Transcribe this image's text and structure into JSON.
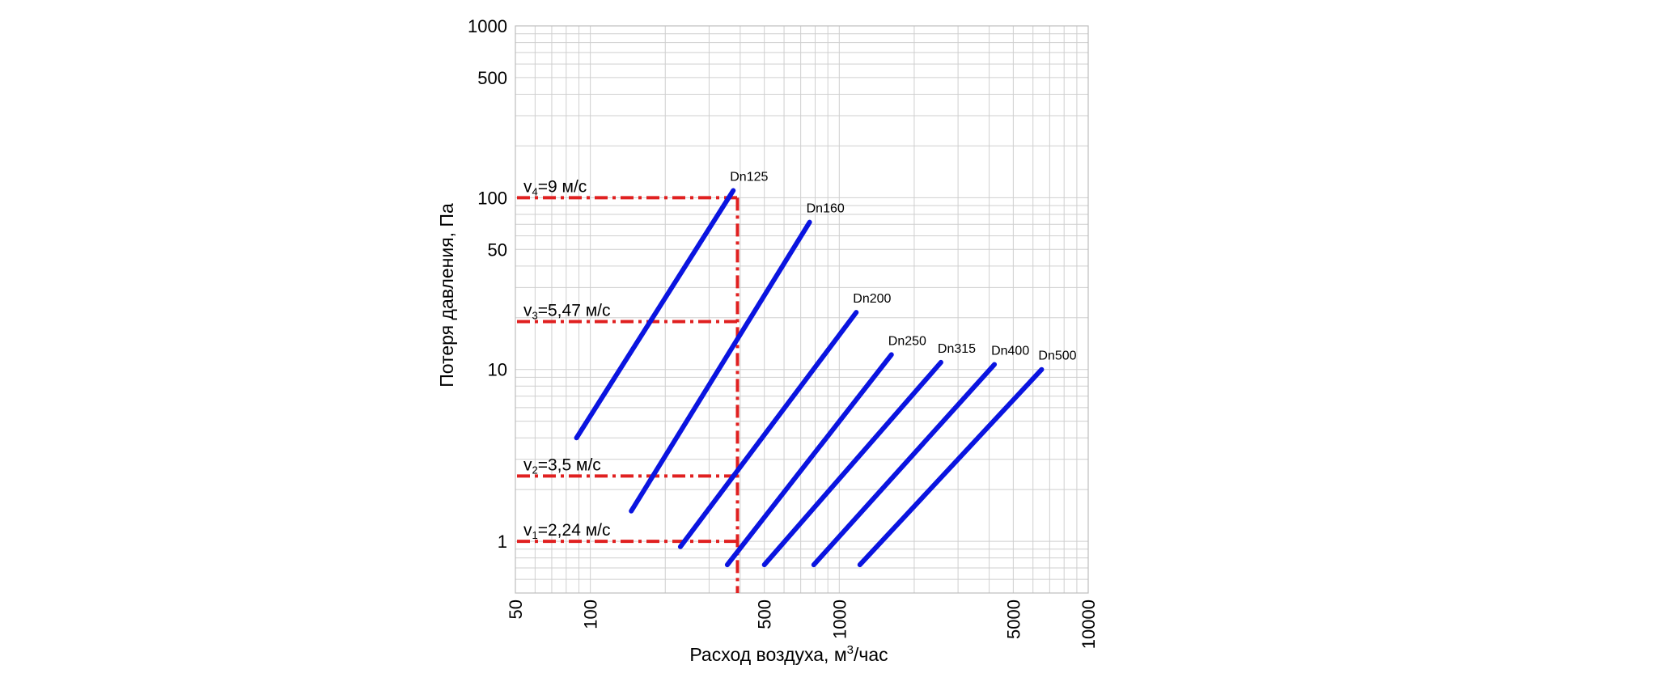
{
  "chart_data": {
    "type": "line",
    "xlabel": "Расход воздуха,  м",
    "xlabel_sup": "3",
    "xlabel_unit": "/час",
    "ylabel": "Потеря давления,  Па",
    "x_scale": "log",
    "y_scale": "log",
    "xlim": [
      50,
      10000
    ],
    "ylim": [
      0.5,
      1000
    ],
    "x_ticks": [
      {
        "value": 50,
        "label": "50"
      },
      {
        "value": 100,
        "label": "100"
      },
      {
        "value": 500,
        "label": "500"
      },
      {
        "value": 1000,
        "label": "1000"
      },
      {
        "value": 5000,
        "label": "5000"
      },
      {
        "value": 10000,
        "label": "10000"
      }
    ],
    "y_ticks": [
      {
        "value": 1,
        "label": "1"
      },
      {
        "value": 10,
        "label": "10"
      },
      {
        "value": 50,
        "label": "50"
      },
      {
        "value": 100,
        "label": "100"
      },
      {
        "value": 500,
        "label": "500"
      },
      {
        "value": 1000,
        "label": "1000"
      }
    ],
    "grid": true,
    "series": [
      {
        "name": "Dn125",
        "color": "#0a14e0",
        "points": [
          [
            88,
            4.0
          ],
          [
            375,
            110
          ]
        ]
      },
      {
        "name": "Dn160",
        "color": "#0a14e0",
        "points": [
          [
            146,
            1.5
          ],
          [
            760,
            72
          ]
        ]
      },
      {
        "name": "Dn200",
        "color": "#0a14e0",
        "points": [
          [
            230,
            0.93
          ],
          [
            1170,
            21.5
          ]
        ]
      },
      {
        "name": "Dn250",
        "color": "#0a14e0",
        "points": [
          [
            355,
            0.73
          ],
          [
            1620,
            12.2
          ]
        ]
      },
      {
        "name": "Dn315",
        "color": "#0a14e0",
        "points": [
          [
            500,
            0.73
          ],
          [
            2560,
            11.0
          ]
        ]
      },
      {
        "name": "Dn400",
        "color": "#0a14e0",
        "points": [
          [
            790,
            0.73
          ],
          [
            4200,
            10.7
          ]
        ]
      },
      {
        "name": "Dn500",
        "color": "#0a14e0",
        "points": [
          [
            1210,
            0.73
          ],
          [
            6500,
            10.0
          ]
        ]
      }
    ],
    "reference_lines": {
      "color": "#e02020",
      "x_value": 390,
      "horizontal": [
        {
          "label_main": "v",
          "label_sub": "4",
          "label_rest": "=9 м/с",
          "y": 100
        },
        {
          "label_main": "v",
          "label_sub": "3",
          "label_rest": "=5,47 м/с",
          "y": 19
        },
        {
          "label_main": "v",
          "label_sub": "2",
          "label_rest": "=3,5 м/с",
          "y": 2.4
        },
        {
          "label_main": "v",
          "label_sub": "1",
          "label_rest": "=2,24 м/с",
          "y": 1
        }
      ]
    }
  }
}
